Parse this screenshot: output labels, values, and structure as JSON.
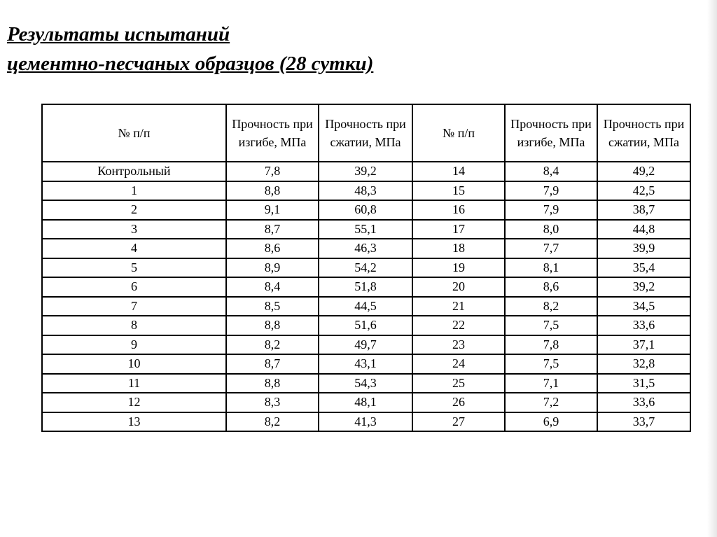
{
  "title": {
    "line1": "Результаты испытаний",
    "line2": "цементно-песчаных образцов (28 сутки)"
  },
  "table": {
    "headers": [
      "№ п/п",
      "Прочность при изгибе, МПа",
      "Прочность при сжатии, МПа",
      "№ п/п",
      "Прочность при изгибе, МПа",
      "Прочность при сжатии, МПа"
    ],
    "rows": [
      [
        "Контрольный",
        "7,8",
        "39,2",
        "14",
        "8,4",
        "49,2"
      ],
      [
        "1",
        "8,8",
        "48,3",
        "15",
        "7,9",
        "42,5"
      ],
      [
        "2",
        "9,1",
        "60,8",
        "16",
        "7,9",
        "38,7"
      ],
      [
        "3",
        "8,7",
        "55,1",
        "17",
        "8,0",
        "44,8"
      ],
      [
        "4",
        "8,6",
        "46,3",
        "18",
        "7,7",
        "39,9"
      ],
      [
        "5",
        "8,9",
        "54,2",
        "19",
        "8,1",
        "35,4"
      ],
      [
        "6",
        "8,4",
        "51,8",
        "20",
        "8,6",
        "39,2"
      ],
      [
        "7",
        "8,5",
        "44,5",
        "21",
        "8,2",
        "34,5"
      ],
      [
        "8",
        "8,8",
        "51,6",
        "22",
        "7,5",
        "33,6"
      ],
      [
        "9",
        "8,2",
        "49,7",
        "23",
        "7,8",
        "37,1"
      ],
      [
        "10",
        "8,7",
        "43,1",
        "24",
        "7,5",
        "32,8"
      ],
      [
        "11",
        "8,8",
        "54,3",
        "25",
        "7,1",
        "31,5"
      ],
      [
        "12",
        "8,3",
        "48,1",
        "26",
        "7,2",
        "33,6"
      ],
      [
        "13",
        "8,2",
        "41,3",
        "27",
        "6,9",
        "33,7"
      ]
    ]
  }
}
